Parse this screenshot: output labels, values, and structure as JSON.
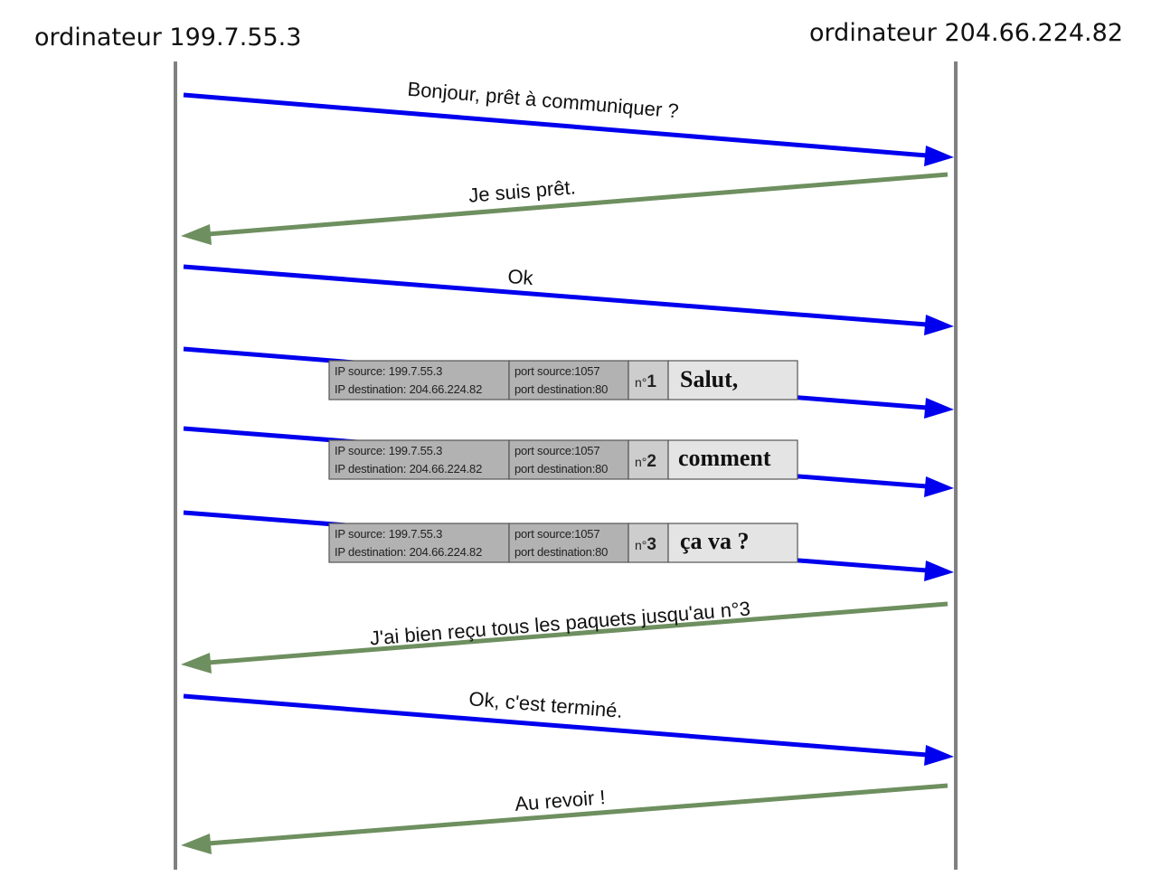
{
  "hosts": {
    "left_label": "ordinateur 199.7.55.3",
    "right_label": "ordinateur 204.66.224.82"
  },
  "colors": {
    "lifeline": "#808080",
    "outgoing_arrow": "#0000ee",
    "incoming_arrow": "#6e8f5f",
    "packet_header_fill": "#b2b2b2",
    "packet_number_fill": "#cdcdcd",
    "packet_payload_fill": "#e4e4e4",
    "packet_border": "#555555"
  },
  "messages": [
    {
      "text": "Bonjour, prêt à communiquer ?",
      "direction": "right"
    },
    {
      "text": "Je suis prêt.",
      "direction": "left"
    },
    {
      "text": "Ok",
      "direction": "right"
    },
    {
      "text": "J'ai bien reçu tous les paquets jusqu'au n°3",
      "direction": "left"
    },
    {
      "text": "Ok, c'est terminé.",
      "direction": "right"
    },
    {
      "text": "Au revoir !",
      "direction": "left"
    }
  ],
  "packets": [
    {
      "ip_source": "IP source: 199.7.55.3",
      "ip_destination": "IP destination: 204.66.224.82",
      "port_source": "port source:1057",
      "port_destination": "port destination:80",
      "number_prefix": "n°",
      "number": "1",
      "payload": "Salut,"
    },
    {
      "ip_source": "IP source: 199.7.55.3",
      "ip_destination": "IP destination: 204.66.224.82",
      "port_source": "port source:1057",
      "port_destination": "port destination:80",
      "number_prefix": "n°",
      "number": "2",
      "payload": "comment"
    },
    {
      "ip_source": "IP source: 199.7.55.3",
      "ip_destination": "IP destination: 204.66.224.82",
      "port_source": "port source:1057",
      "port_destination": "port destination:80",
      "number_prefix": "n°",
      "number": "3",
      "payload": "ça va ?"
    }
  ]
}
